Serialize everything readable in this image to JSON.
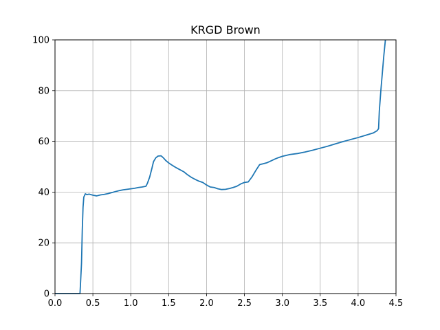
{
  "chart_data": {
    "type": "line",
    "title": "KRGD Brown",
    "xlabel": "",
    "ylabel": "",
    "xlim": [
      0,
      4.5
    ],
    "ylim": [
      0,
      100
    ],
    "xticks": [
      0.0,
      0.5,
      1.0,
      1.5,
      2.0,
      2.5,
      3.0,
      3.5,
      4.0,
      4.5
    ],
    "xtick_labels": [
      "0.0",
      "0.5",
      "1.0",
      "1.5",
      "2.0",
      "2.5",
      "3.0",
      "3.5",
      "4.0",
      "4.5"
    ],
    "yticks": [
      0,
      20,
      40,
      60,
      80,
      100
    ],
    "ytick_labels": [
      "0",
      "20",
      "40",
      "60",
      "80",
      "100"
    ],
    "grid": true,
    "color": "#1f77b4",
    "series": [
      {
        "x": [
          0.0,
          0.1,
          0.2,
          0.3,
          0.33,
          0.35,
          0.36,
          0.37,
          0.38,
          0.4,
          0.42,
          0.45,
          0.5,
          0.55,
          0.6,
          0.65,
          0.7,
          0.75,
          0.8,
          0.85,
          0.9,
          0.95,
          1.0,
          1.05,
          1.1,
          1.15,
          1.2,
          1.22,
          1.25,
          1.28,
          1.3,
          1.33,
          1.36,
          1.4,
          1.43,
          1.46,
          1.5,
          1.55,
          1.6,
          1.65,
          1.7,
          1.75,
          1.8,
          1.85,
          1.9,
          1.95,
          2.0,
          2.05,
          2.1,
          2.15,
          2.2,
          2.25,
          2.3,
          2.35,
          2.4,
          2.45,
          2.5,
          2.55,
          2.6,
          2.65,
          2.7,
          2.75,
          2.8,
          2.85,
          2.9,
          2.95,
          3.0,
          3.1,
          3.2,
          3.3,
          3.4,
          3.5,
          3.6,
          3.7,
          3.8,
          3.9,
          4.0,
          4.1,
          4.2,
          4.25,
          4.27,
          4.28,
          4.3,
          4.32,
          4.34,
          4.36
        ],
        "y": [
          0,
          0,
          0,
          0,
          0,
          12,
          25,
          34,
          38,
          39.3,
          39.0,
          39.2,
          38.8,
          38.5,
          38.9,
          39.1,
          39.4,
          39.8,
          40.2,
          40.6,
          40.9,
          41.1,
          41.3,
          41.5,
          41.8,
          42.0,
          42.3,
          43.5,
          46.0,
          49.5,
          52.0,
          53.5,
          54.2,
          54.3,
          53.5,
          52.5,
          51.5,
          50.5,
          49.6,
          48.8,
          48.0,
          46.8,
          45.8,
          45.0,
          44.3,
          43.8,
          42.8,
          42.0,
          41.8,
          41.3,
          41.0,
          41.1,
          41.4,
          41.8,
          42.3,
          43.2,
          43.8,
          44.0,
          46.0,
          48.5,
          50.8,
          51.2,
          51.6,
          52.3,
          53.0,
          53.6,
          54.1,
          54.8,
          55.2,
          55.8,
          56.5,
          57.3,
          58.1,
          59.0,
          59.9,
          60.7,
          61.5,
          62.4,
          63.3,
          64.2,
          65.0,
          72.0,
          80.0,
          87.0,
          94.0,
          100.0
        ]
      }
    ]
  }
}
